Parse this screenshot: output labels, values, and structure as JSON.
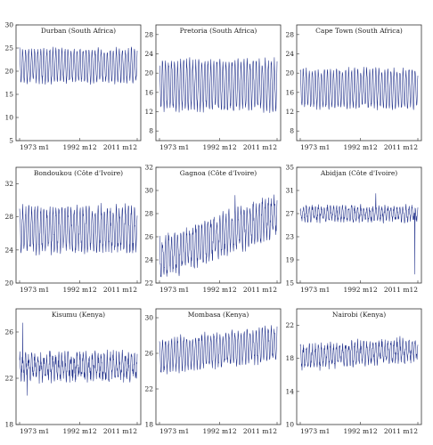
{
  "colors": {
    "series": "#1f2f8a",
    "frame": "#333333",
    "text": "#222222"
  },
  "chart_data": [
    {
      "type": "line",
      "title": "Durban (South Africa)",
      "x_ticks": [
        "1973 m1",
        "1992 m12",
        "2011 m12"
      ],
      "y_ticks": [
        5,
        10,
        15,
        20,
        25,
        30
      ],
      "ylim": [
        5,
        30
      ],
      "mean": 21.2,
      "amplitude": 3.4,
      "noise": 0.7,
      "trend": 0.0,
      "anomalies": []
    },
    {
      "type": "line",
      "title": "Pretoria (South Africa)",
      "x_ticks": [
        "1973 m1",
        "1992 m12",
        "2011 m12"
      ],
      "y_ticks": [
        8,
        12,
        16,
        20,
        24,
        28
      ],
      "ylim": [
        6,
        30
      ],
      "mean": 17.5,
      "amplitude": 4.8,
      "noise": 1.0,
      "trend": 0.0,
      "anomalies": []
    },
    {
      "type": "line",
      "title": "Cape Town (South Africa)",
      "x_ticks": [
        "1973 m1",
        "1992 m12",
        "2011 m12"
      ],
      "y_ticks": [
        8,
        12,
        16,
        20,
        24,
        28
      ],
      "ylim": [
        6,
        30
      ],
      "mean": 16.8,
      "amplitude": 3.8,
      "noise": 0.7,
      "trend": 0.0,
      "anomalies": []
    },
    {
      "type": "line",
      "title": "Bondoukou (Côte d'Ivoire)",
      "x_ticks": [
        "1973 m1",
        "1992 m12",
        "2011 m12"
      ],
      "y_ticks": [
        20,
        24,
        28,
        32
      ],
      "ylim": [
        20,
        34
      ],
      "mean": 26.5,
      "amplitude": 2.4,
      "noise": 0.8,
      "trend": 0.0,
      "anomalies": []
    },
    {
      "type": "line",
      "title": "Gagnoa (Côte d'Ivoire)",
      "x_ticks": [
        "1973 m1",
        "1992 m12",
        "2011 m12"
      ],
      "y_ticks": [
        22,
        24,
        26,
        28,
        30,
        32
      ],
      "ylim": [
        22,
        32
      ],
      "mean": 26.0,
      "amplitude": 1.6,
      "noise": 0.6,
      "trend": 0.008,
      "anomalies": [
        {
          "month": 300,
          "value": 29.6
        }
      ]
    },
    {
      "type": "line",
      "title": "Abidjan (Côte d'Ivoire)",
      "x_ticks": [
        "1973 m1",
        "1992 m12",
        "2011 m12"
      ],
      "y_ticks": [
        15,
        19,
        23,
        27,
        31,
        35
      ],
      "ylim": [
        15,
        35
      ],
      "mean": 27.0,
      "amplitude": 1.1,
      "noise": 0.6,
      "trend": 0.0,
      "anomalies": [
        {
          "month": 455,
          "value": 16.5
        },
        {
          "month": 300,
          "value": 30.5
        }
      ]
    },
    {
      "type": "line",
      "title": "Kisumu (Kenya)",
      "x_ticks": [
        "1973 m1",
        "1992 m12",
        "2011 m12"
      ],
      "y_ticks": [
        18,
        22,
        26
      ],
      "ylim": [
        18,
        28
      ],
      "mean": 23.0,
      "amplitude": 0.9,
      "noise": 0.6,
      "trend": 0.0,
      "anomalies": [
        {
          "month": 12,
          "value": 26.8
        },
        {
          "month": 30,
          "value": 20.5
        }
      ]
    },
    {
      "type": "line",
      "title": "Mombasa (Kenya)",
      "x_ticks": [
        "1973 m1",
        "1992 m12",
        "2011 m12"
      ],
      "y_ticks": [
        18,
        22,
        26,
        30
      ],
      "ylim": [
        18,
        31
      ],
      "mean": 26.4,
      "amplitude": 1.7,
      "noise": 0.5,
      "trend": 0.003,
      "anomalies": []
    },
    {
      "type": "line",
      "title": "Nairobi (Kenya)",
      "x_ticks": [
        "1973 m1",
        "1992 m12",
        "2011 m12"
      ],
      "y_ticks": [
        10,
        14,
        18,
        22
      ],
      "ylim": [
        10,
        24
      ],
      "mean": 18.6,
      "amplitude": 1.2,
      "noise": 0.6,
      "trend": 0.002,
      "anomalies": []
    }
  ]
}
